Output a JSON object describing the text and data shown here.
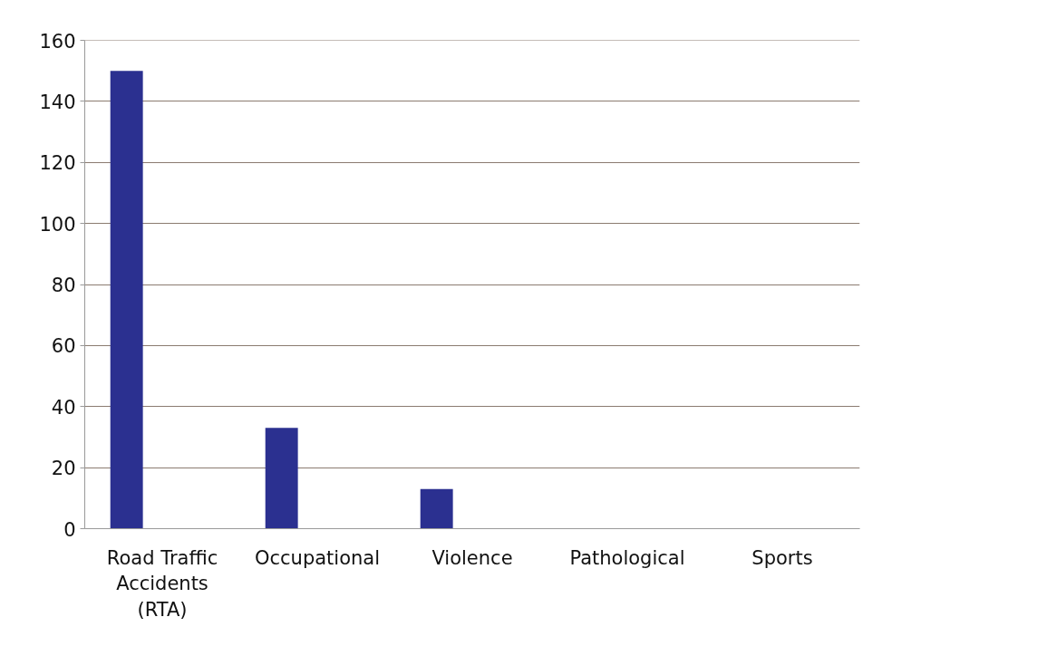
{
  "chart_data": {
    "type": "bar",
    "categories": [
      "Road Traffic Accidents (RTA)",
      "Occupational",
      "Violence",
      "Pathological",
      "Sports"
    ],
    "values": [
      150,
      33,
      13,
      0,
      0
    ],
    "color": "#2b3090",
    "ylim": [
      0,
      160
    ],
    "yticks": [
      0,
      20,
      40,
      60,
      80,
      100,
      120,
      140,
      160
    ],
    "grid": "y"
  }
}
